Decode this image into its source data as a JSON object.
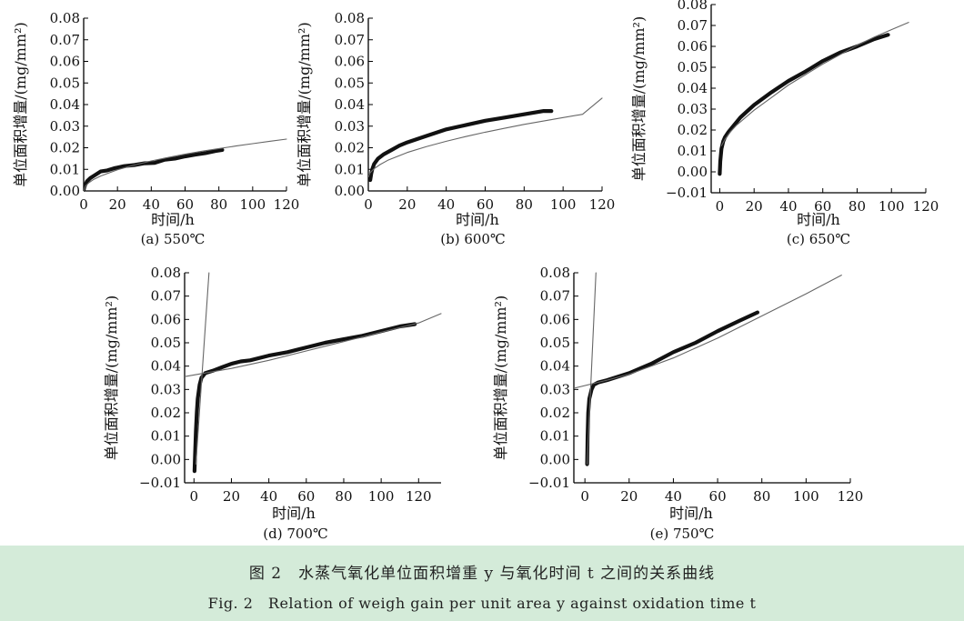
{
  "caption": {
    "cn": "图 2　水蒸气氧化单位面积增重 y 与氧化时间 t 之间的关系曲线",
    "en": "Fig. 2　Relation of weigh gain per unit area y against oxidation time t"
  },
  "colors": {
    "band": "#d4ebd9",
    "line": "#666666",
    "data": "#111111"
  },
  "chart_data": [
    {
      "type": "line",
      "id": "a",
      "subtitle": "(a) 550℃",
      "xlabel": "时间/h",
      "ylabel": "单位面积增量/(mg/mm²)",
      "xlim": [
        0,
        120
      ],
      "ylim": [
        0,
        0.08
      ],
      "xticks": [
        "0",
        "20",
        "40",
        "60",
        "80",
        "100",
        "120"
      ],
      "yticks": [
        "0.00",
        "0.01",
        "0.02",
        "0.03",
        "0.04",
        "0.05",
        "0.06",
        "0.07",
        "0.08"
      ],
      "series": [
        {
          "role": "measured",
          "x": [
            0,
            0.5,
            1,
            2,
            4,
            6,
            8,
            10,
            14,
            18,
            24,
            30,
            36,
            42,
            48,
            54,
            60,
            66,
            72,
            78,
            82
          ],
          "y": [
            0.0005,
            0.002,
            0.003,
            0.0045,
            0.006,
            0.007,
            0.008,
            0.009,
            0.0095,
            0.0105,
            0.0115,
            0.012,
            0.0128,
            0.013,
            0.0145,
            0.015,
            0.016,
            0.0168,
            0.0175,
            0.0185,
            0.019
          ]
        },
        {
          "role": "fit",
          "x": [
            0,
            1,
            3,
            6,
            10,
            20,
            30,
            40,
            50,
            60,
            70,
            80,
            90,
            100,
            110,
            120
          ],
          "y": [
            0.0,
            0.0022,
            0.0038,
            0.0054,
            0.0069,
            0.0098,
            0.012,
            0.0139,
            0.0155,
            0.017,
            0.0184,
            0.0196,
            0.0208,
            0.0219,
            0.023,
            0.024
          ]
        }
      ]
    },
    {
      "type": "line",
      "id": "b",
      "subtitle": "(b) 600℃",
      "xlabel": "时间/h",
      "ylabel": "单位面积增量/(mg/mm²)",
      "xlim": [
        0,
        120
      ],
      "ylim": [
        0,
        0.08
      ],
      "xticks": [
        "0",
        "20",
        "40",
        "60",
        "80",
        "100",
        "120"
      ],
      "yticks": [
        "0.00",
        "0.01",
        "0.02",
        "0.03",
        "0.04",
        "0.05",
        "0.06",
        "0.07",
        "0.08"
      ],
      "series": [
        {
          "role": "measured",
          "x": [
            1,
            1.5,
            2,
            3,
            5,
            8,
            12,
            16,
            20,
            25,
            30,
            40,
            50,
            60,
            70,
            80,
            90,
            94
          ],
          "y": [
            0.005,
            0.008,
            0.01,
            0.0125,
            0.015,
            0.017,
            0.019,
            0.021,
            0.0225,
            0.024,
            0.0255,
            0.0285,
            0.0305,
            0.0325,
            0.034,
            0.0355,
            0.037,
            0.037
          ]
        },
        {
          "role": "fit",
          "x": [
            0,
            1,
            3,
            6,
            10,
            20,
            30,
            40,
            50,
            60,
            70,
            80,
            90,
            100,
            110,
            120
          ],
          "y": [
            0.0065,
            0.0085,
            0.0103,
            0.0122,
            0.0142,
            0.0178,
            0.0206,
            0.023,
            0.0252,
            0.0272,
            0.029,
            0.0308,
            0.0324,
            0.034,
            0.0355,
            0.043
          ]
        }
      ]
    },
    {
      "type": "line",
      "id": "c",
      "subtitle": "(c) 650℃",
      "xlabel": "时间/h",
      "ylabel": "单位面积增量/(mg/mm²)",
      "xlim": [
        -5,
        120
      ],
      "ylim": [
        -0.01,
        0.08
      ],
      "xticks": [
        "0",
        "20",
        "40",
        "60",
        "80",
        "100",
        "120"
      ],
      "yticks": [
        "-0.01",
        "0.00",
        "0.01",
        "0.02",
        "0.03",
        "0.04",
        "0.05",
        "0.06",
        "0.07",
        "0.08"
      ],
      "series": [
        {
          "role": "measured",
          "x": [
            0,
            0.3,
            1,
            2,
            3,
            5,
            8,
            12,
            16,
            20,
            30,
            40,
            50,
            60,
            70,
            80,
            90,
            98
          ],
          "y": [
            -0.001,
            0.005,
            0.011,
            0.0145,
            0.0165,
            0.019,
            0.022,
            0.026,
            0.029,
            0.032,
            0.038,
            0.0435,
            0.048,
            0.053,
            0.057,
            0.06,
            0.0635,
            0.0655
          ]
        },
        {
          "role": "fit",
          "x": [
            1,
            3,
            6,
            10,
            20,
            30,
            40,
            50,
            60,
            70,
            80,
            90,
            100,
            110
          ],
          "y": [
            0.0125,
            0.0155,
            0.019,
            0.0225,
            0.0295,
            0.0355,
            0.0415,
            0.0465,
            0.0515,
            0.056,
            0.0605,
            0.0645,
            0.068,
            0.0715
          ]
        }
      ]
    },
    {
      "type": "line",
      "id": "d",
      "subtitle": "(d) 700℃",
      "xlabel": "时间/h",
      "ylabel": "单位面积增量/(mg/mm²)",
      "xlim": [
        -5,
        132
      ],
      "ylim": [
        -0.01,
        0.08
      ],
      "xticks": [
        "0",
        "20",
        "40",
        "60",
        "80",
        "100",
        "120"
      ],
      "yticks": [
        "-0.01",
        "0.00",
        "0.01",
        "0.02",
        "0.03",
        "0.04",
        "0.05",
        "0.06",
        "0.07",
        "0.08"
      ],
      "series": [
        {
          "role": "measured",
          "x": [
            0.3,
            0.6,
            1,
            1.5,
            2,
            3,
            4,
            6,
            10,
            15,
            20,
            25,
            30,
            40,
            50,
            60,
            70,
            80,
            90,
            100,
            110,
            118
          ],
          "y": [
            -0.005,
            0.002,
            0.012,
            0.02,
            0.026,
            0.032,
            0.035,
            0.037,
            0.038,
            0.0395,
            0.041,
            0.042,
            0.0425,
            0.0445,
            0.046,
            0.048,
            0.05,
            0.0515,
            0.053,
            0.055,
            0.057,
            0.058
          ]
        },
        {
          "role": "fit",
          "x": [
            -5,
            20,
            40,
            60,
            80,
            100,
            120,
            132
          ],
          "y": [
            0.0355,
            0.039,
            0.0425,
            0.0465,
            0.0505,
            0.0545,
            0.0585,
            0.0625
          ]
        },
        {
          "role": "fit-steep",
          "x": [
            1,
            8
          ],
          "y": [
            -0.002,
            0.08
          ]
        }
      ]
    },
    {
      "type": "line",
      "id": "e",
      "subtitle": "(e) 750℃",
      "xlabel": "时间/h",
      "ylabel": "单位面积增量/(mg/mm²)",
      "xlim": [
        -5,
        120
      ],
      "ylim": [
        -0.01,
        0.08
      ],
      "xticks": [
        "0",
        "20",
        "40",
        "60",
        "80",
        "100",
        "120"
      ],
      "yticks": [
        "-0.01",
        "0.00",
        "0.01",
        "0.02",
        "0.03",
        "0.04",
        "0.05",
        "0.06",
        "0.07",
        "0.08"
      ],
      "series": [
        {
          "role": "measured",
          "x": [
            1,
            1.2,
            1.5,
            2,
            3,
            4,
            6,
            10,
            15,
            20,
            25,
            30,
            40,
            50,
            60,
            70,
            78
          ],
          "y": [
            -0.002,
            0.01,
            0.02,
            0.026,
            0.03,
            0.032,
            0.033,
            0.034,
            0.0355,
            0.037,
            0.039,
            0.041,
            0.046,
            0.05,
            0.055,
            0.0595,
            0.063
          ]
        },
        {
          "role": "fit",
          "x": [
            -5,
            10,
            20,
            40,
            60,
            80,
            100,
            116
          ],
          "y": [
            0.0305,
            0.034,
            0.0365,
            0.0435,
            0.052,
            0.0615,
            0.071,
            0.079
          ]
        },
        {
          "role": "fit-steep",
          "x": [
            1,
            5
          ],
          "y": [
            -0.002,
            0.08
          ]
        }
      ]
    }
  ]
}
